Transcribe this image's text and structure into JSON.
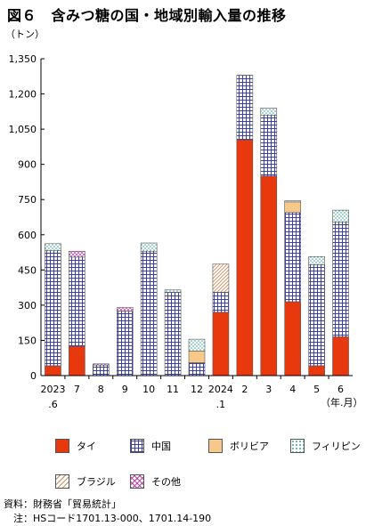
{
  "chart_data": {
    "type": "bar",
    "stacked": true,
    "title": "図６　含みつ糖の国・地域別輸入量の推移",
    "ylabel": "（トン）",
    "xlabel": "（年.月）",
    "ylim": [
      0,
      1350
    ],
    "yticks": [
      0,
      150,
      300,
      450,
      600,
      750,
      900,
      "1,050",
      "1,200",
      "1,350"
    ],
    "ytick_values": [
      0,
      150,
      300,
      450,
      600,
      750,
      900,
      1050,
      1200,
      1350
    ],
    "categories": [
      "2023.6",
      "7",
      "8",
      "9",
      "10",
      "11",
      "12",
      "2024.1",
      "2",
      "3",
      "4",
      "5",
      "6"
    ],
    "category_labels": [
      {
        "line1": "2023",
        "line2": ".6"
      },
      {
        "line1": "7",
        "line2": ""
      },
      {
        "line1": "8",
        "line2": ""
      },
      {
        "line1": "9",
        "line2": ""
      },
      {
        "line1": "10",
        "line2": ""
      },
      {
        "line1": "11",
        "line2": ""
      },
      {
        "line1": "12",
        "line2": ""
      },
      {
        "line1": "2024",
        "line2": ".1"
      },
      {
        "line1": "2",
        "line2": ""
      },
      {
        "line1": "3",
        "line2": ""
      },
      {
        "line1": "4",
        "line2": ""
      },
      {
        "line1": "5",
        "line2": ""
      },
      {
        "line1": "6",
        "line2": ""
      }
    ],
    "series": [
      {
        "name": "タイ",
        "color": "#e8380d",
        "pattern": "solid",
        "values": [
          42,
          125,
          0,
          0,
          0,
          0,
          0,
          270,
          1005,
          850,
          315,
          42,
          165
        ]
      },
      {
        "name": "中国",
        "color": "#3b3fa8",
        "pattern": "grid",
        "values": [
          490,
          380,
          45,
          275,
          530,
          355,
          55,
          85,
          275,
          260,
          380,
          430,
          490
        ]
      },
      {
        "name": "ボリビア",
        "color": "#f6c98a",
        "pattern": "solid",
        "values": [
          0,
          0,
          0,
          0,
          0,
          0,
          50,
          0,
          0,
          0,
          45,
          0,
          0
        ]
      },
      {
        "name": "フィリピン",
        "color": "#7ec6c0",
        "pattern": "dots",
        "values": [
          30,
          0,
          0,
          0,
          35,
          10,
          50,
          0,
          0,
          30,
          5,
          35,
          50
        ]
      },
      {
        "name": "ブラジル",
        "color": "#c98f5e",
        "pattern": "diagonal",
        "values": [
          0,
          0,
          0,
          0,
          0,
          0,
          0,
          120,
          0,
          0,
          0,
          0,
          0
        ]
      },
      {
        "name": "その他",
        "color": "#c042a8",
        "pattern": "crosshatch",
        "values": [
          0,
          25,
          5,
          15,
          0,
          0,
          0,
          0,
          0,
          0,
          0,
          0,
          0
        ]
      }
    ],
    "grid": false,
    "legend_placement": "bottom"
  },
  "legend_row1": [
    "タイ",
    "中国",
    "ボリビア",
    "フィリピン"
  ],
  "legend_row2": [
    "ブラジル",
    "その他"
  ],
  "notes": {
    "source": "資料：財務省「貿易統計」",
    "note": "　注：HSコード1701.13-000、1701.14-190"
  }
}
